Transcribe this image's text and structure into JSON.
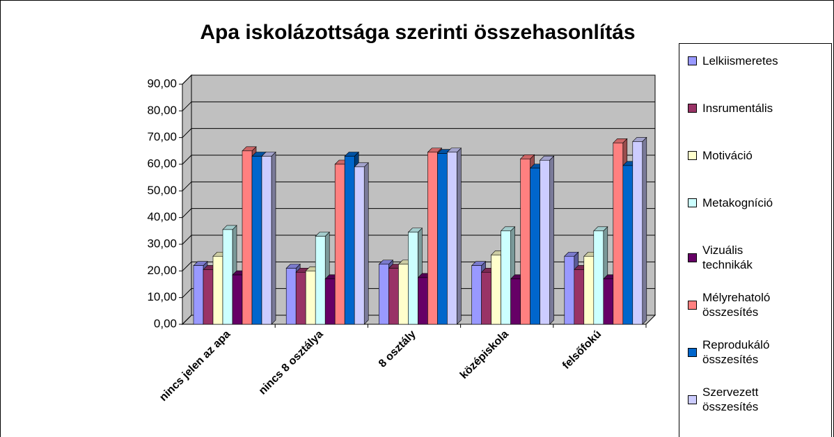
{
  "chart_data": {
    "type": "bar3d",
    "title": "Apa iskolázottsága szerinti összehasonlítás",
    "categories": [
      "nincs jelen az apa",
      "nincs 8 osztálya",
      "8 osztály",
      "középiskola",
      "felsőfokú"
    ],
    "series": [
      {
        "name": "Lelkiismeretes",
        "color": "#9999ff",
        "values": [
          22,
          21,
          22.5,
          22,
          25.5
        ]
      },
      {
        "name": "Insrumentális",
        "color": "#993366",
        "values": [
          20.5,
          19.5,
          21,
          19.5,
          20.5
        ]
      },
      {
        "name": "Motiváció",
        "color": "#ffffcc",
        "values": [
          25.5,
          20,
          22.5,
          26,
          25.5
        ]
      },
      {
        "name": "Metakogníció",
        "color": "#ccffff",
        "values": [
          35.5,
          33,
          34.5,
          35,
          35
        ]
      },
      {
        "name": "Vizuális technikák",
        "color": "#660066",
        "values": [
          18.5,
          17,
          17.5,
          17,
          17
        ]
      },
      {
        "name": "Mélyrehatoló összesítés",
        "color": "#ff8080",
        "values": [
          65,
          60,
          64.5,
          62,
          68
        ]
      },
      {
        "name": "Reprodukáló összesítés",
        "color": "#0066cc",
        "values": [
          63,
          63,
          64,
          58.5,
          59.5
        ]
      },
      {
        "name": "Szervezett összesítés",
        "color": "#ccccff",
        "values": [
          63,
          59,
          64.5,
          61.5,
          68.5
        ]
      }
    ],
    "ylim": [
      0,
      90
    ],
    "yticks": [
      {
        "value": 0,
        "label": "0,00"
      },
      {
        "value": 10,
        "label": "10,00"
      },
      {
        "value": 20,
        "label": "20,00"
      },
      {
        "value": 30,
        "label": "30,00"
      },
      {
        "value": 40,
        "label": "40,00"
      },
      {
        "value": 50,
        "label": "50,00"
      },
      {
        "value": 60,
        "label": "60,00"
      },
      {
        "value": 70,
        "label": "70,00"
      },
      {
        "value": 80,
        "label": "80,00"
      },
      {
        "value": 90,
        "label": "90,00"
      }
    ],
    "grid": true,
    "legend": "right",
    "wall_color": "#c0c0c0"
  }
}
